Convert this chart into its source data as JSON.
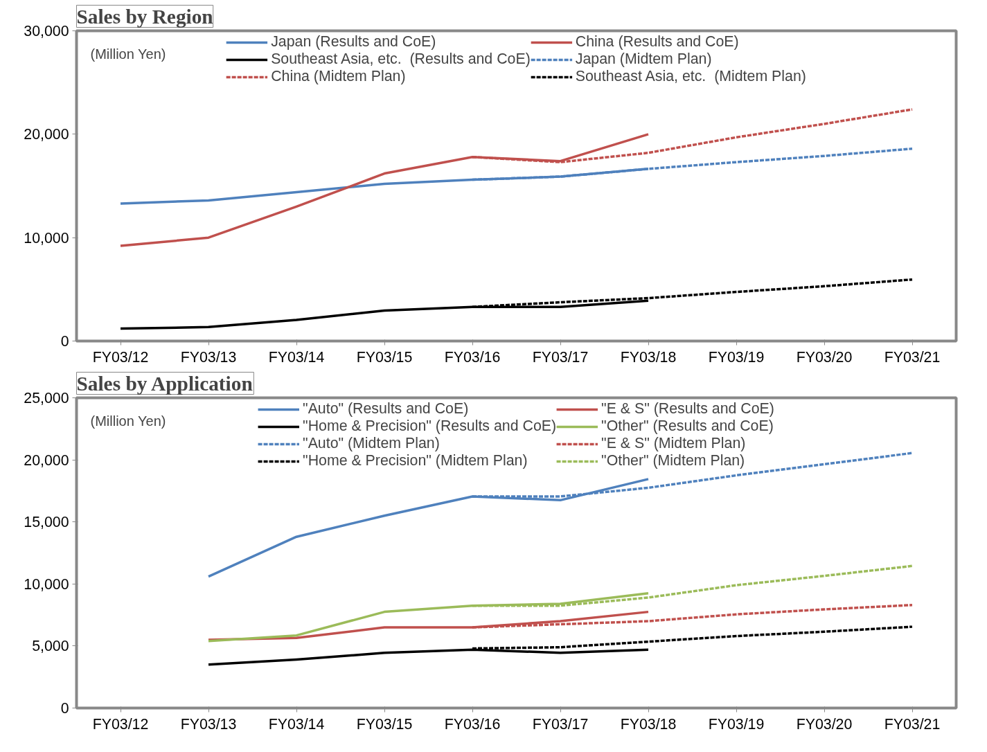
{
  "chart_data": [
    {
      "type": "line",
      "title": "Sales by Region",
      "annotations": [
        "(Million Yen)"
      ],
      "categories": [
        "FY03/12",
        "FY03/13",
        "FY03/14",
        "FY03/15",
        "FY03/16",
        "FY03/17",
        "FY03/18",
        "FY03/19",
        "FY03/20",
        "FY03/21"
      ],
      "ylim": [
        0,
        30000
      ],
      "yticks": [
        {
          "value": 0,
          "label": "0"
        },
        {
          "value": 10000,
          "label": "10,000"
        },
        {
          "value": 20000,
          "label": "20,000"
        },
        {
          "value": 30000,
          "label": "30,000"
        }
      ],
      "grid": false,
      "legend": "top",
      "series": [
        {
          "name": "Japan (Results and CoE)",
          "color": "#4f81bd",
          "line_style": "solid",
          "values": [
            13300,
            13600,
            14400,
            15200,
            15600,
            15900,
            16650,
            null,
            null,
            null
          ]
        },
        {
          "name": "China (Results and CoE)",
          "color": "#c0504d",
          "line_style": "solid",
          "values": [
            9200,
            10000,
            13000,
            16200,
            17800,
            17400,
            20000,
            null,
            null,
            null
          ]
        },
        {
          "name": "Southeast Asia, etc.  (Results and CoE)",
          "color": "#000000",
          "line_style": "solid",
          "values": [
            1200,
            1350,
            2050,
            2950,
            3300,
            3300,
            3900,
            null,
            null,
            null
          ]
        },
        {
          "name": "Japan (Midtem Plan)",
          "color": "#4f81bd",
          "line_style": "dashed",
          "values": [
            null,
            null,
            null,
            null,
            15600,
            15900,
            16650,
            17300,
            17900,
            18600
          ]
        },
        {
          "name": "China (Midtem Plan)",
          "color": "#c0504d",
          "line_style": "dashed",
          "values": [
            null,
            null,
            null,
            null,
            17800,
            17300,
            18200,
            19700,
            21000,
            22400
          ]
        },
        {
          "name": "Southeast Asia, etc.  (Midtem Plan)",
          "color": "#000000",
          "line_style": "dashed",
          "values": [
            null,
            null,
            null,
            null,
            3300,
            3750,
            4150,
            4750,
            5300,
            5950
          ]
        }
      ]
    },
    {
      "type": "line",
      "title": "Sales by Application",
      "annotations": [
        "(Million Yen)"
      ],
      "categories": [
        "FY03/12",
        "FY03/13",
        "FY03/14",
        "FY03/15",
        "FY03/16",
        "FY03/17",
        "FY03/18",
        "FY03/19",
        "FY03/20",
        "FY03/21"
      ],
      "ylim": [
        0,
        25000
      ],
      "yticks": [
        {
          "value": 0,
          "label": "0"
        },
        {
          "value": 5000,
          "label": "5,000"
        },
        {
          "value": 10000,
          "label": "10,000"
        },
        {
          "value": 15000,
          "label": "15,000"
        },
        {
          "value": 20000,
          "label": "20,000"
        },
        {
          "value": 25000,
          "label": "25,000"
        }
      ],
      "grid": false,
      "legend": "top",
      "series": [
        {
          "name": "\"Auto\" (Results and CoE)",
          "color": "#4f81bd",
          "line_style": "solid",
          "values": [
            null,
            10600,
            13800,
            15500,
            17050,
            16750,
            18450,
            null,
            null,
            null
          ]
        },
        {
          "name": "\"E & S\" (Results and CoE)",
          "color": "#c0504d",
          "line_style": "solid",
          "values": [
            null,
            5500,
            5650,
            6500,
            6500,
            7000,
            7750,
            null,
            null,
            null
          ]
        },
        {
          "name": "\"Home & Precision\" (Results and CoE)",
          "color": "#000000",
          "line_style": "solid",
          "values": [
            null,
            3500,
            3900,
            4450,
            4700,
            4450,
            4700,
            null,
            null,
            null
          ]
        },
        {
          "name": "\"Other\" (Results and CoE)",
          "color": "#9bbb59",
          "line_style": "solid",
          "values": [
            null,
            5400,
            5850,
            7750,
            8250,
            8400,
            9250,
            null,
            null,
            null
          ]
        },
        {
          "name": "\"Auto\" (Midtem Plan)",
          "color": "#4f81bd",
          "line_style": "dashed",
          "values": [
            null,
            null,
            null,
            null,
            17050,
            17050,
            17750,
            18750,
            19650,
            20550
          ]
        },
        {
          "name": "\"E & S\" (Midtem Plan)",
          "color": "#c0504d",
          "line_style": "dashed",
          "values": [
            null,
            null,
            null,
            null,
            6500,
            6750,
            7000,
            7550,
            7950,
            8300
          ]
        },
        {
          "name": "\"Home & Precision\" (Midtem Plan)",
          "color": "#000000",
          "line_style": "dashed",
          "values": [
            null,
            null,
            null,
            null,
            4800,
            4900,
            5350,
            5800,
            6150,
            6550
          ]
        },
        {
          "name": "\"Other\" (Midtem Plan)",
          "color": "#9bbb59",
          "line_style": "dashed",
          "values": [
            null,
            null,
            null,
            null,
            8250,
            8250,
            8900,
            9900,
            10650,
            11450
          ]
        }
      ]
    }
  ]
}
